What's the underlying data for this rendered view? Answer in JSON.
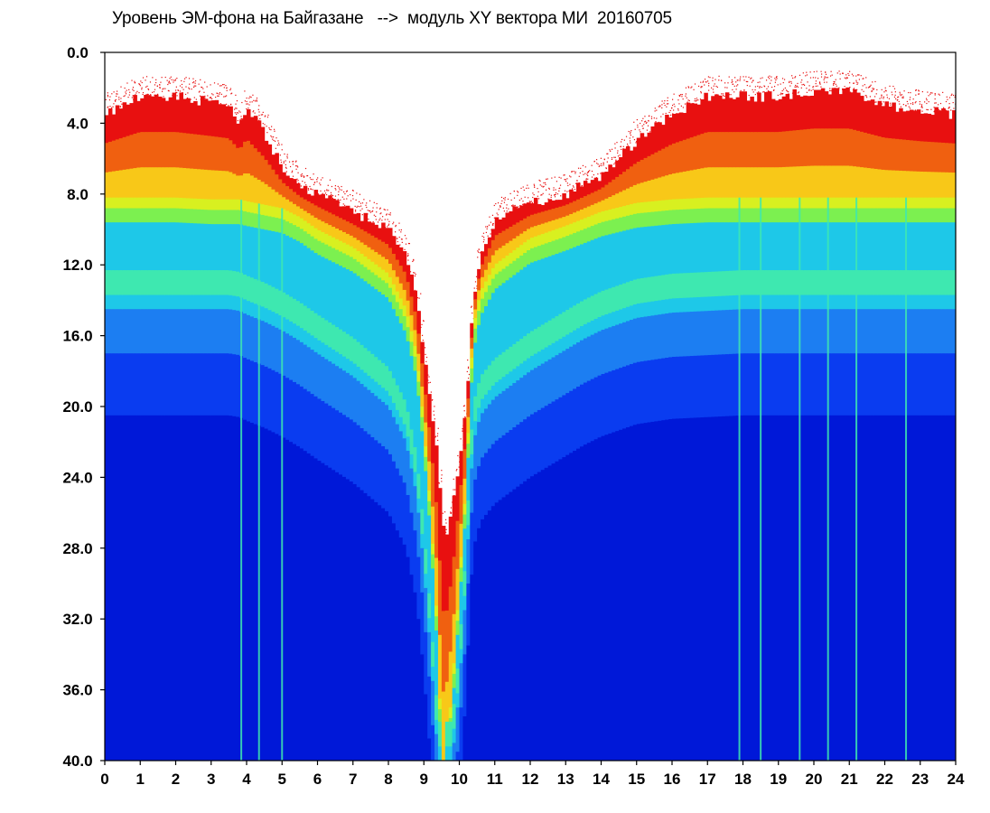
{
  "chart_data": {
    "type": "heatmap",
    "title": "Уровень ЭМ-фона на Байгазане   -->  модуль XY вектора МИ  20160705",
    "xlabel": "",
    "ylabel": "",
    "xlim": [
      0,
      24
    ],
    "ylim": [
      0,
      40
    ],
    "y_axis_inverted": true,
    "grid": false,
    "legend": "none",
    "x_ticks": [
      "0",
      "1",
      "2",
      "3",
      "4",
      "5",
      "6",
      "7",
      "8",
      "9",
      "10",
      "11",
      "12",
      "13",
      "14",
      "15",
      "16",
      "17",
      "18",
      "19",
      "20",
      "21",
      "22",
      "23",
      "24"
    ],
    "y_ticks": [
      "0.0",
      "4.0",
      "8.0",
      "12.0",
      "16.0",
      "20.0",
      "24.0",
      "28.0",
      "32.0",
      "36.0",
      "40.0"
    ],
    "colormap": [
      "#0018d8",
      "#0a3cf0",
      "#1c7ef2",
      "#1ec8e8",
      "#3ee8b0",
      "#7cf050",
      "#d8f020",
      "#f8c818",
      "#f06010",
      "#e81010"
    ],
    "background_color": "#ffffff",
    "band_edge_profile": {
      "hours": [
        0,
        0.5,
        1,
        2,
        3,
        3.5,
        3.8,
        4,
        4.5,
        5,
        5.5,
        6,
        7,
        8,
        8.5,
        8.8,
        9,
        9.2,
        9.4,
        9.5,
        9.6,
        9.8,
        10,
        10.2,
        10.3,
        10.4,
        10.6,
        11,
        12,
        13,
        13.5,
        14,
        15,
        16,
        17,
        18,
        19,
        20,
        21,
        22,
        23,
        24
      ],
      "upper_edge": [
        3.5,
        3.0,
        2.5,
        2.5,
        2.8,
        3.0,
        4.0,
        3.0,
        4.5,
        6.5,
        7.5,
        8.0,
        9.0,
        10.0,
        11.5,
        14.0,
        17.0,
        20.0,
        23.0,
        26.0,
        28.0,
        26.0,
        23.0,
        20.0,
        17.0,
        14.0,
        11.5,
        9.5,
        8.5,
        8.0,
        7.5,
        7.0,
        5.0,
        3.5,
        2.5,
        2.5,
        2.5,
        2.2,
        2.2,
        3.0,
        3.3,
        3.5
      ],
      "red_to_cyan": [
        8.2,
        8.2,
        8.2,
        8.2,
        8.3,
        8.3,
        8.3,
        8.4,
        8.6,
        8.8,
        9.3,
        10.0,
        11.0,
        12.5,
        14.5,
        17.0,
        21.0,
        26.0,
        33.0,
        40.0,
        40.0,
        36.0,
        30.0,
        24.0,
        19.0,
        15.5,
        13.5,
        12.0,
        10.5,
        9.8,
        9.4,
        9.0,
        8.5,
        8.3,
        8.2,
        8.2,
        8.2,
        8.2,
        8.2,
        8.2,
        8.2,
        8.2
      ],
      "cyan_to_blue": [
        14.5,
        14.5,
        14.5,
        14.5,
        14.5,
        14.5,
        14.6,
        14.8,
        15.2,
        15.7,
        16.3,
        17.0,
        18.3,
        20.0,
        22.0,
        25.0,
        29.0,
        34.0,
        40.0,
        40.0,
        40.0,
        40.0,
        36.0,
        30.0,
        25.0,
        22.0,
        20.5,
        19.5,
        18.0,
        16.8,
        16.2,
        15.7,
        15.0,
        14.7,
        14.6,
        14.5,
        14.5,
        14.5,
        14.5,
        14.5,
        14.5,
        14.5
      ]
    },
    "vertical_streaks_hours": [
      3.85,
      4.35,
      5.0,
      17.9,
      18.5,
      19.6,
      20.4,
      21.2,
      22.6
    ]
  }
}
